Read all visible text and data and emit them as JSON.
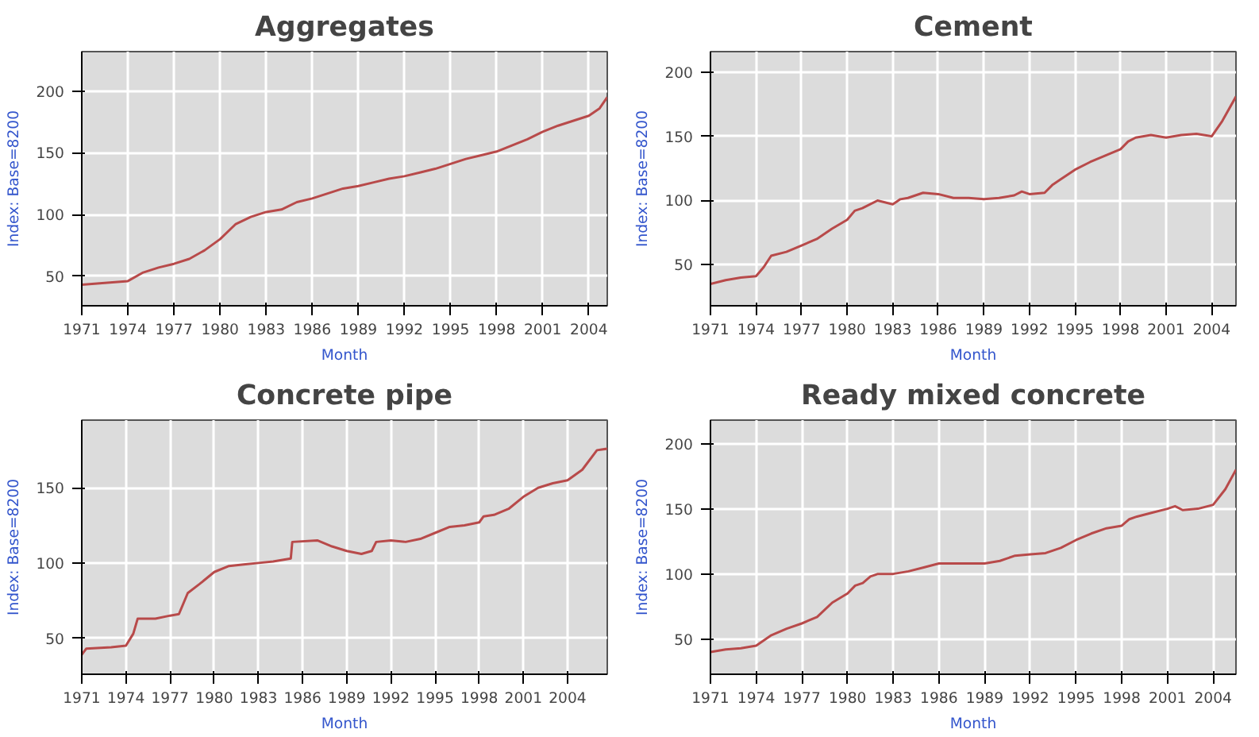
{
  "chart_data": [
    {
      "type": "line",
      "title": "Aggregates",
      "xlabel": "Month",
      "ylabel": "Index: Base=8200",
      "grid": true,
      "xlim": [
        1971,
        2005.2
      ],
      "ylim": [
        26,
        232
      ],
      "xticks": [
        1971,
        1974,
        1977,
        1980,
        1983,
        1986,
        1989,
        1992,
        1995,
        1998,
        2001,
        2004
      ],
      "yticks": [
        50,
        100,
        150,
        200
      ],
      "series": [
        {
          "color": "#b84a4a",
          "x": [
            1971,
            1972,
            1973,
            1974,
            1975,
            1976,
            1977,
            1978,
            1979,
            1980,
            1981,
            1982,
            1983,
            1984,
            1985,
            1986,
            1987,
            1988,
            1989,
            1990,
            1991,
            1992,
            1993,
            1994,
            1995,
            1996,
            1997,
            1998,
            1999,
            2000,
            2001,
            2002,
            2003,
            2004,
            2004.7,
            2005.2
          ],
          "values": [
            43,
            44,
            45,
            46,
            53,
            57,
            60,
            64,
            71,
            80,
            92,
            98,
            102,
            104,
            110,
            113,
            117,
            121,
            123,
            126,
            129,
            131,
            134,
            137,
            141,
            145,
            148,
            151,
            156,
            161,
            167,
            172,
            176,
            180,
            186,
            195
          ]
        }
      ]
    },
    {
      "type": "line",
      "title": "Cement",
      "xlabel": "Month",
      "ylabel": "Index: Base=8200",
      "grid": true,
      "xlim": [
        1971,
        2005.6
      ],
      "ylim": [
        18,
        216
      ],
      "xticks": [
        1971,
        1974,
        1977,
        1980,
        1983,
        1986,
        1989,
        1992,
        1995,
        1998,
        2001,
        2004
      ],
      "yticks": [
        50,
        100,
        150,
        200
      ],
      "series": [
        {
          "color": "#b84a4a",
          "x": [
            1971,
            1972,
            1973,
            1974,
            1974.5,
            1975,
            1976,
            1977,
            1978,
            1979,
            1980,
            1980.5,
            1981,
            1982,
            1983,
            1983.5,
            1984,
            1985,
            1986,
            1987,
            1988,
            1989,
            1990,
            1991,
            1991.5,
            1992,
            1993,
            1993.5,
            1994,
            1995,
            1996,
            1997,
            1998,
            1998.5,
            1999,
            2000,
            2001,
            2002,
            2003,
            2004,
            2004.7,
            2005.6
          ],
          "values": [
            35,
            38,
            40,
            41,
            48,
            57,
            60,
            65,
            70,
            78,
            85,
            92,
            94,
            100,
            97,
            101,
            102,
            106,
            105,
            102,
            102,
            101,
            102,
            104,
            107,
            105,
            106,
            112,
            116,
            124,
            130,
            135,
            140,
            146,
            149,
            151,
            149,
            151,
            152,
            150,
            162,
            181
          ]
        }
      ]
    },
    {
      "type": "line",
      "title": "Concrete pipe",
      "xlabel": "Month",
      "ylabel": "Index: Base=8200",
      "grid": true,
      "xlim": [
        1971,
        2006.7
      ],
      "ylim": [
        26,
        195
      ],
      "xticks": [
        1971,
        1974,
        1977,
        1980,
        1983,
        1986,
        1989,
        1992,
        1995,
        1998,
        2001,
        2004
      ],
      "yticks": [
        50,
        100,
        150
      ],
      "series": [
        {
          "color": "#b84a4a",
          "x": [
            1971,
            1971.3,
            1973,
            1974,
            1974.5,
            1974.8,
            1976,
            1977,
            1977.6,
            1978.2,
            1979,
            1980,
            1981,
            1982,
            1983,
            1984,
            1985.2,
            1985.3,
            1987,
            1988,
            1989,
            1990,
            1990.7,
            1991,
            1992,
            1993,
            1994,
            1995,
            1996,
            1997,
            1998,
            1998.3,
            1999,
            2000,
            2001,
            2002,
            2003,
            2004,
            2005,
            2006,
            2006.7
          ],
          "values": [
            39,
            43,
            44,
            45,
            53,
            63,
            63,
            65,
            66,
            80,
            86,
            94,
            98,
            99,
            100,
            101,
            103,
            114,
            115,
            111,
            108,
            106,
            108,
            114,
            115,
            114,
            116,
            120,
            124,
            125,
            127,
            131,
            132,
            136,
            144,
            150,
            153,
            155,
            162,
            175,
            176
          ]
        }
      ]
    },
    {
      "type": "line",
      "title": "Ready mixed concrete",
      "xlabel": "Month",
      "ylabel": "Index: Base=8200",
      "grid": true,
      "xlim": [
        1971,
        2005.5
      ],
      "ylim": [
        23,
        218
      ],
      "xticks": [
        1971,
        1974,
        1977,
        1980,
        1983,
        1986,
        1989,
        1992,
        1995,
        1998,
        2001,
        2004
      ],
      "yticks": [
        50,
        100,
        150,
        200
      ],
      "series": [
        {
          "color": "#b84a4a",
          "x": [
            1971,
            1972,
            1973,
            1974,
            1975,
            1976,
            1977,
            1978,
            1979,
            1980,
            1980.5,
            1981,
            1981.5,
            1982,
            1983,
            1984,
            1985,
            1986,
            1987,
            1988,
            1989,
            1990,
            1991,
            1992,
            1993,
            1994,
            1995,
            1996,
            1997,
            1998,
            1998.5,
            1999,
            2000,
            2001,
            2001.5,
            2002,
            2003,
            2004,
            2004.8,
            2005.5
          ],
          "values": [
            40,
            42,
            43,
            45,
            53,
            58,
            62,
            67,
            78,
            85,
            91,
            93,
            98,
            100,
            100,
            102,
            105,
            108,
            108,
            108,
            108,
            110,
            114,
            115,
            116,
            120,
            126,
            131,
            135,
            137,
            142,
            144,
            147,
            150,
            152,
            149,
            150,
            153,
            165,
            180
          ]
        }
      ]
    }
  ]
}
